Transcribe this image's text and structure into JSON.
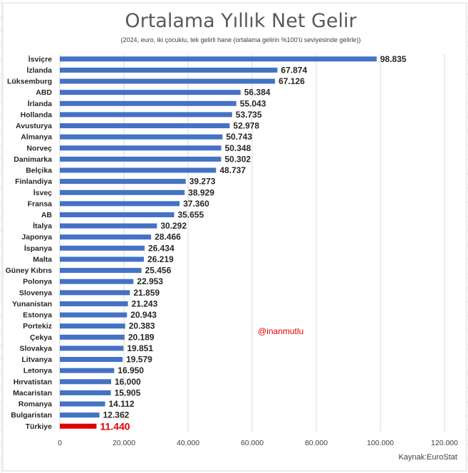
{
  "chart_data": {
    "type": "bar",
    "orientation": "horizontal",
    "title": "Ortalama Yıllık Net Gelir",
    "subtitle": "(2024, euro, iki çocuklu, tek gelirli hane (ortalama gelirin %100'ü seviyesinde gelirle))",
    "categories": [
      "İsviçre",
      "İzlanda",
      "Lüksemburg",
      "ABD",
      "İrlanda",
      "Hollanda",
      "Avusturya",
      "Almanya",
      "Norveç",
      "Danimarka",
      "Belçika",
      "Finlandiya",
      "İsveç",
      "Fransa",
      "AB",
      "İtalya",
      "Japonya",
      "İspanya",
      "Malta",
      "Güney Kıbrıs",
      "Polonya",
      "Slovenya",
      "Yunanistan",
      "Estonya",
      "Portekiz",
      "Çekya",
      "Slovakya",
      "Litvanya",
      "Letonya",
      "Hırvatistan",
      "Macaristan",
      "Romanya",
      "Bulgaristan",
      "Türkiye"
    ],
    "values": [
      98835,
      67874,
      67126,
      56384,
      55043,
      53735,
      52978,
      50743,
      50348,
      50302,
      48737,
      39273,
      38929,
      37360,
      35655,
      30292,
      28466,
      26434,
      26219,
      25456,
      22953,
      21859,
      21243,
      20943,
      20383,
      20189,
      19851,
      19579,
      16950,
      16000,
      15905,
      14112,
      12362,
      11440
    ],
    "value_labels": [
      "98.835",
      "67.874",
      "67.126",
      "56.384",
      "55.043",
      "53.735",
      "52.978",
      "50.743",
      "50.348",
      "50.302",
      "48.737",
      "39.273",
      "38.929",
      "37.360",
      "35.655",
      "30.292",
      "28.466",
      "26.434",
      "26.219",
      "25.456",
      "22.953",
      "21.859",
      "21.243",
      "20.943",
      "20.383",
      "20.189",
      "19.851",
      "19.579",
      "16.950",
      "16.000",
      "15.905",
      "14.112",
      "12.362",
      "11.440"
    ],
    "highlight_category": "Türkiye",
    "xlim": [
      0,
      120000
    ],
    "xticks": [
      0,
      20000,
      40000,
      60000,
      80000,
      100000,
      120000
    ],
    "xtick_labels": [
      "0",
      "20.000",
      "40.000",
      "60.000",
      "80.000",
      "100.000",
      "120.000"
    ],
    "xlabel": "",
    "ylabel": "",
    "grid": true,
    "legend": "none",
    "colors": {
      "bar": "#4472c4",
      "highlight": "#e00000",
      "grid": "#d9d9d9"
    }
  },
  "annotations": {
    "handle": "@inanmutlu",
    "source": "Kaynak:EuroStat"
  }
}
